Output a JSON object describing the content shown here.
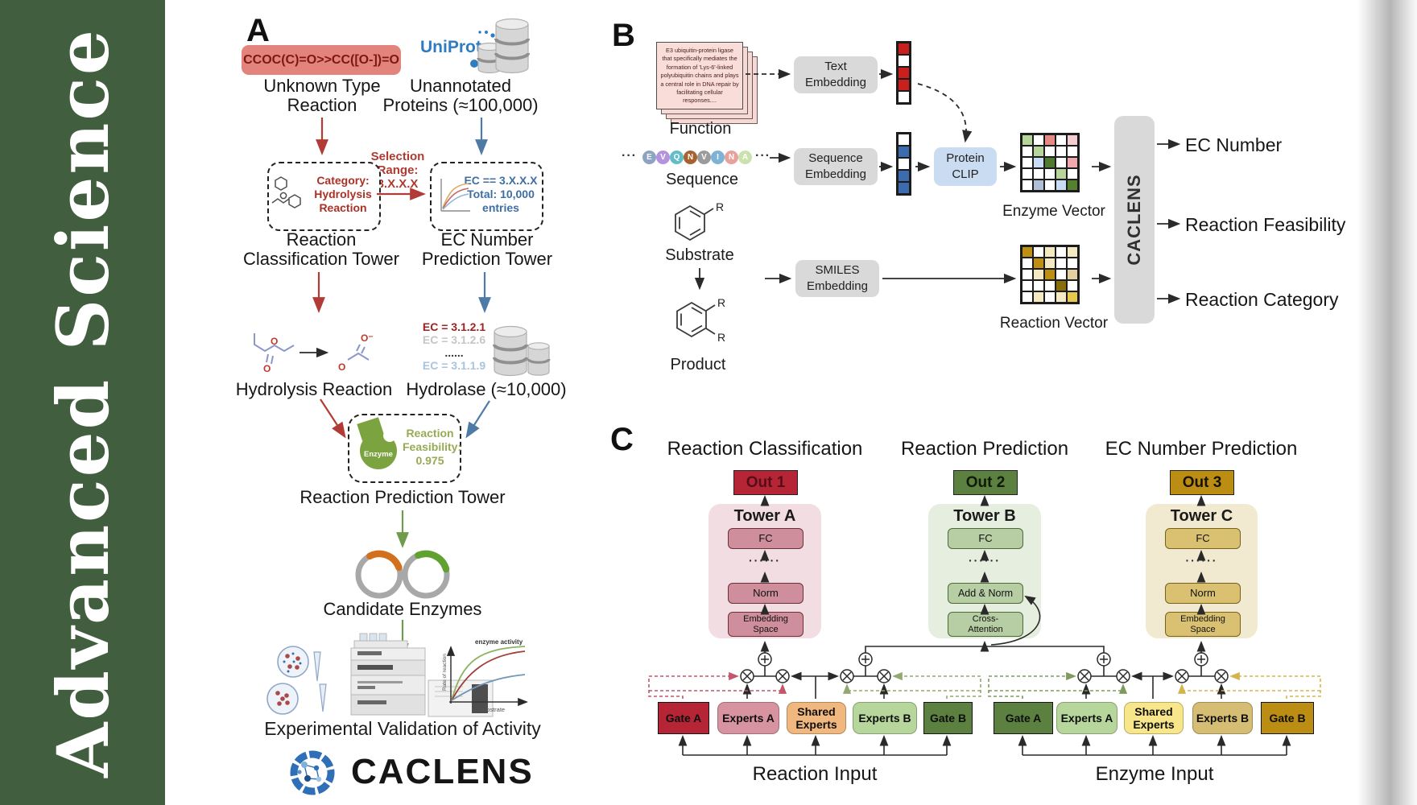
{
  "journal": {
    "title": "Advanced Science"
  },
  "panel_a": {
    "label": "A",
    "smiles": "CCOC(C)=O>>CC([O-])=O",
    "unknown_reaction": "Unknown Type\nReaction",
    "uniprot": "UniProt",
    "unannotated_proteins": "Unannotated\nProteins (≈100,000)",
    "selection_range": "Selection\nRange:\n3.X.X.X",
    "category_box": "Category:\nHydrolysis\nReaction",
    "ec_box": "EC == 3.X.X.X\nTotal: 10,000\nentries",
    "classification_tower": "Reaction\nClassification Tower",
    "ec_tower": "EC Number\nPrediction Tower",
    "hydrolysis_reaction": "Hydrolysis Reaction",
    "ec_list": [
      "EC = 3.1.2.1",
      "EC = 3.1.2.6",
      "......",
      "EC = 3.1.1.9"
    ],
    "hydrolase": "Hydrolase (≈10,000)",
    "enzyme_blob": "Enzyme",
    "feasibility_box": "Reaction\nFeasibility:\n0.975",
    "prediction_tower": "Reaction Prediction Tower",
    "candidate_enzymes": "Candidate Enzymes",
    "validation": "Experimental Validation of Activity",
    "brand": "CACLENS",
    "o_atom": "O",
    "o_minus": "O⁻",
    "activity_plot": {
      "annotation": "enzyme activity",
      "ylabel": "Rate of reaction",
      "xlabel": "Substrate"
    }
  },
  "panel_b": {
    "label": "B",
    "function_card": "E3 ubiquitin-protein ligase that specifically mediates the formation of 'Lys-6'-linked polyubiquitin chains and plays a central role in DNA repair by facilitating cellular responses....",
    "function_label": "Function",
    "ellipsis": "···",
    "sequence_residues": [
      {
        "letter": "E",
        "color": "#8ca3c2"
      },
      {
        "letter": "V",
        "color": "#b493dd"
      },
      {
        "letter": "Q",
        "color": "#63bdc7"
      },
      {
        "letter": "N",
        "color": "#a8612f"
      },
      {
        "letter": "V",
        "color": "#9b9b9b"
      },
      {
        "letter": "I",
        "color": "#7fb3d6"
      },
      {
        "letter": "N",
        "color": "#e8a19b"
      },
      {
        "letter": "A",
        "color": "#cbe2ae"
      }
    ],
    "sequence_label": "Sequence",
    "substrate_label": "Substrate",
    "product_label": "Product",
    "r_label": "R",
    "text_embedding": "Text\nEmbedding",
    "sequence_embedding": "Sequence\nEmbedding",
    "smiles_embedding": "SMILES\nEmbedding",
    "protein_clip": "Protein\nCLIP",
    "text_vector": [
      "#c9201d",
      "#ffffff",
      "#c9201d",
      "#c9201d",
      "#ffffff"
    ],
    "sequence_vector": [
      "#ffffff",
      "#3c6cad",
      "#ffffff",
      "#3c6cad",
      "#3c6cad"
    ],
    "enzyme_grid": [
      [
        "#b6d49c",
        "#ffffff",
        "#e58b84",
        "#ffffff",
        "#f4cdd0"
      ],
      [
        "#ffffff",
        "#b6d49c",
        "#ffffff",
        "#ffffff",
        "#ffffff"
      ],
      [
        "#ffffff",
        "#c9dcf3",
        "#4e7b2f",
        "#ffffff",
        "#efa8ab"
      ],
      [
        "#ffffff",
        "#ffffff",
        "#ffffff",
        "#b6d49c",
        "#ffffff"
      ],
      [
        "#ffffff",
        "#aebfd6",
        "#ffffff",
        "#c9dcf3",
        "#55802f"
      ]
    ],
    "reaction_grid": [
      [
        "#bd8f13",
        "#ffffff",
        "#f3e9c3",
        "#ffffff",
        "#f3e9c3"
      ],
      [
        "#ffffff",
        "#bd8f13",
        "#f3e9c3",
        "#ffffff",
        "#ffffff"
      ],
      [
        "#ffffff",
        "#f3e9c3",
        "#bd8f13",
        "#ffffff",
        "#e4cfa0"
      ],
      [
        "#ffffff",
        "#ffffff",
        "#ffffff",
        "#8a6d0b",
        "#ffffff"
      ],
      [
        "#ffffff",
        "#f3e9c3",
        "#ffffff",
        "#f3e9c3",
        "#e6c84f"
      ]
    ],
    "enzyme_vector_label": "Enzyme Vector",
    "reaction_vector_label": "Reaction Vector",
    "caclens": "CACLENS",
    "outputs": [
      "EC Number",
      "Reaction Feasibility",
      "Reaction Category"
    ]
  },
  "panel_c": {
    "label": "C",
    "columns": [
      {
        "header": "Reaction Classification",
        "out": "Out 1",
        "tower": "Tower A",
        "fc": "FC",
        "dots": "······",
        "mid": "Norm",
        "bottom": "Embedding\nSpace"
      },
      {
        "header": "Reaction Prediction",
        "out": "Out 2",
        "tower": "Tower B",
        "fc": "FC",
        "dots": "······",
        "mid": "Add & Norm",
        "bottom": "Cross-\nAttention"
      },
      {
        "header": "EC Number Prediction",
        "out": "Out 3",
        "tower": "Tower C",
        "fc": "FC",
        "dots": "······",
        "mid": "Norm",
        "bottom": "Embedding\nSpace"
      }
    ],
    "groups": [
      {
        "label": "Reaction Input",
        "boxes": [
          "Gate A",
          "Experts A",
          "Shared\nExperts",
          "Experts B",
          "Gate B"
        ]
      },
      {
        "label": "Enzyme Input",
        "boxes": [
          "Gate A",
          "Experts A",
          "Shared\nExperts",
          "Experts B",
          "Gate B"
        ]
      }
    ]
  }
}
